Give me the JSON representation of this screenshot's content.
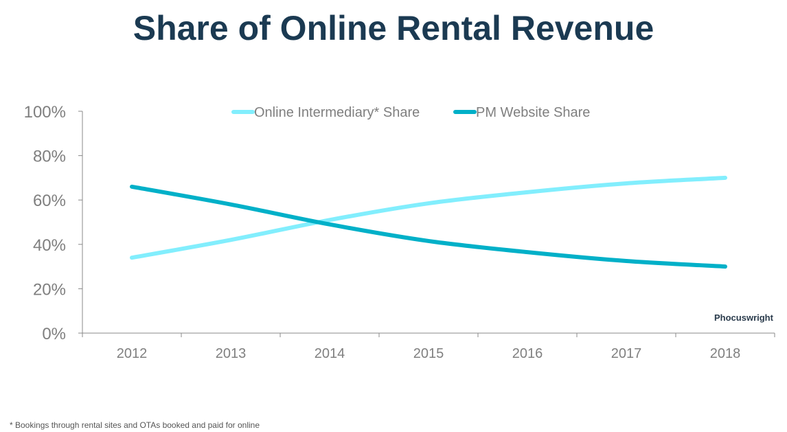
{
  "chart_data": {
    "type": "line",
    "title": "Share of Online Rental Revenue",
    "categories": [
      "2012",
      "2013",
      "2014",
      "2015",
      "2016",
      "2017",
      "2018"
    ],
    "ylim": [
      0,
      100
    ],
    "yticks": [
      "0%",
      "20%",
      "40%",
      "60%",
      "80%",
      "100%"
    ],
    "grid": false,
    "legend": "top",
    "series": [
      {
        "name": "Online Intermediary* Share",
        "color": "#82eefd",
        "values": [
          34,
          42,
          51,
          58.5,
          63.5,
          67.5,
          70
        ]
      },
      {
        "name": "PM Website Share",
        "color": "#00b0c8",
        "values": [
          66,
          58,
          49,
          41.5,
          36.5,
          32.5,
          30
        ]
      }
    ]
  },
  "footnote": "* Bookings through rental sites and OTAs booked and paid for online",
  "logo": "Phocuswright"
}
